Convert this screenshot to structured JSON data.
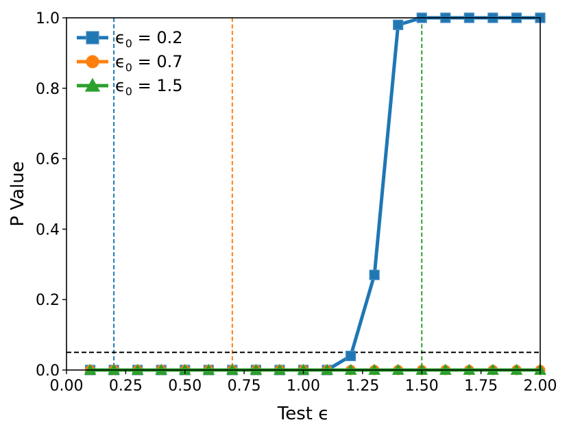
{
  "chart_data": {
    "type": "line",
    "xlabel": "Test ϵ",
    "ylabel": "P Value",
    "xlim": [
      0.0,
      2.0
    ],
    "ylim": [
      0.0,
      1.0
    ],
    "xticks": [
      "0.00",
      "0.25",
      "0.50",
      "0.75",
      "1.00",
      "1.25",
      "1.50",
      "1.75",
      "2.00"
    ],
    "yticks": [
      "0.0",
      "0.2",
      "0.4",
      "0.6",
      "0.8",
      "1.0"
    ],
    "grid": false,
    "legend_position": "top-left",
    "x": [
      0.1,
      0.2,
      0.3,
      0.4,
      0.5,
      0.6,
      0.7,
      0.8,
      0.9,
      1.0,
      1.1,
      1.2,
      1.3,
      1.4,
      1.5,
      1.6,
      1.7,
      1.8,
      1.9,
      2.0
    ],
    "series": [
      {
        "name": "ϵ0 = 0.2",
        "legend_main": "ϵ",
        "legend_sub": "0",
        "legend_rest": " = 0.2",
        "color": "#1f77b4",
        "marker": "square",
        "values": [
          0,
          0,
          0,
          0,
          0,
          0,
          0,
          0,
          0,
          0,
          0,
          0.04,
          0.27,
          0.98,
          1.0,
          1.0,
          1.0,
          1.0,
          1.0,
          1.0
        ],
        "vline": 0.2
      },
      {
        "name": "ϵ0 = 0.7",
        "legend_main": "ϵ",
        "legend_sub": "0",
        "legend_rest": " = 0.7",
        "color": "#ff7f0e",
        "marker": "circle",
        "values": [
          0,
          0,
          0,
          0,
          0,
          0,
          0,
          0,
          0,
          0,
          0,
          0,
          0,
          0,
          0,
          0,
          0,
          0,
          0,
          0
        ],
        "vline": 0.7
      },
      {
        "name": "ϵ0 = 1.5",
        "legend_main": "ϵ",
        "legend_sub": "0",
        "legend_rest": " = 1.5",
        "color": "#2ca02c",
        "marker": "triangle",
        "values": [
          0,
          0,
          0,
          0,
          0,
          0,
          0,
          0,
          0,
          0,
          0,
          0,
          0,
          0,
          0,
          0,
          0,
          0,
          0,
          0
        ],
        "vline": 1.5
      }
    ],
    "threshold": {
      "value": 0.05,
      "color": "#000000"
    }
  }
}
